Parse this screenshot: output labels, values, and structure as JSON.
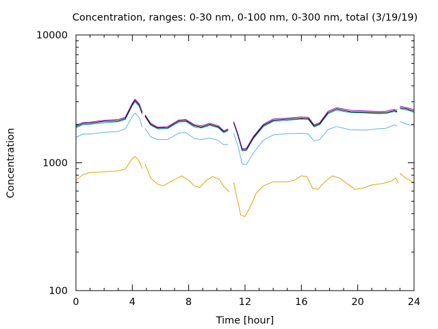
{
  "chart_data": {
    "type": "line",
    "title": "Concentration, ranges: 0-30 nm, 0-100 nm, 0-300 nm, total (3/19/19)",
    "xlabel": "Time [hour]",
    "ylabel": "Concentration",
    "xlim": [
      0,
      24
    ],
    "ylim": [
      100,
      10000
    ],
    "yscale": "log",
    "grid": false,
    "legend": "none",
    "x_ticks": [
      "0",
      "4",
      "8",
      "12",
      "16",
      "20",
      "24"
    ],
    "y_ticks": [
      "100",
      "1000",
      "10000"
    ],
    "series": [
      {
        "color": "#e69f00",
        "points": [
          [
            0,
            730
          ],
          [
            0.5,
            810
          ],
          [
            1,
            840
          ],
          [
            2,
            850
          ],
          [
            3,
            865
          ],
          [
            3.5,
            890
          ],
          [
            4.0,
            1080
          ],
          [
            4.2,
            1120
          ],
          [
            4.5,
            1030
          ],
          [
            4.7,
            900
          ],
          [
            4.8,
            null
          ],
          [
            4.9,
            980
          ],
          [
            5.3,
            760
          ],
          [
            5.8,
            680
          ],
          [
            6.2,
            660
          ],
          [
            6.8,
            720
          ],
          [
            7.5,
            790
          ],
          [
            8.0,
            730
          ],
          [
            8.4,
            660
          ],
          [
            8.8,
            640
          ],
          [
            9.2,
            720
          ],
          [
            9.7,
            780
          ],
          [
            10.2,
            740
          ],
          [
            10.5,
            650
          ],
          [
            10.9,
            590
          ],
          [
            11.0,
            null
          ],
          [
            11.2,
            700
          ],
          [
            11.4,
            550
          ],
          [
            11.7,
            390
          ],
          [
            12.0,
            380
          ],
          [
            12.4,
            460
          ],
          [
            12.8,
            580
          ],
          [
            13.3,
            660
          ],
          [
            14.0,
            710
          ],
          [
            15.0,
            710
          ],
          [
            15.5,
            730
          ],
          [
            16.0,
            790
          ],
          [
            16.4,
            780
          ],
          [
            16.8,
            630
          ],
          [
            17.2,
            620
          ],
          [
            17.6,
            700
          ],
          [
            18.2,
            790
          ],
          [
            18.7,
            760
          ],
          [
            19.3,
            680
          ],
          [
            19.8,
            620
          ],
          [
            20.3,
            630
          ],
          [
            21.0,
            670
          ],
          [
            21.8,
            690
          ],
          [
            22.4,
            720
          ],
          [
            22.7,
            760
          ],
          [
            22.9,
            690
          ],
          [
            23.0,
            null
          ],
          [
            23.0,
            830
          ],
          [
            23.4,
            760
          ],
          [
            24,
            700
          ]
        ]
      },
      {
        "color": "#56b4e9",
        "points": [
          [
            0,
            1580
          ],
          [
            0.5,
            1680
          ],
          [
            1,
            1680
          ],
          [
            2,
            1730
          ],
          [
            3,
            1760
          ],
          [
            3.5,
            1840
          ],
          [
            4.0,
            2300
          ],
          [
            4.2,
            2450
          ],
          [
            4.5,
            2250
          ],
          [
            4.7,
            1900
          ],
          [
            4.8,
            null
          ],
          [
            4.9,
            1860
          ],
          [
            5.3,
            1600
          ],
          [
            5.8,
            1520
          ],
          [
            6.5,
            1520
          ],
          [
            7.3,
            1710
          ],
          [
            7.8,
            1720
          ],
          [
            8.4,
            1550
          ],
          [
            8.9,
            1520
          ],
          [
            9.5,
            1560
          ],
          [
            10.1,
            1500
          ],
          [
            10.5,
            1380
          ],
          [
            10.8,
            1400
          ],
          [
            11.0,
            null
          ],
          [
            11.2,
            1700
          ],
          [
            11.5,
            1350
          ],
          [
            11.8,
            980
          ],
          [
            12.1,
            970
          ],
          [
            12.6,
            1200
          ],
          [
            13.3,
            1500
          ],
          [
            14.0,
            1650
          ],
          [
            15.0,
            1690
          ],
          [
            16.0,
            1700
          ],
          [
            16.5,
            1680
          ],
          [
            16.9,
            1480
          ],
          [
            17.3,
            1520
          ],
          [
            17.9,
            1820
          ],
          [
            18.5,
            1920
          ],
          [
            19.5,
            1810
          ],
          [
            20.5,
            1800
          ],
          [
            21.5,
            1850
          ],
          [
            22.0,
            1860
          ],
          [
            22.6,
            1980
          ],
          [
            22.8,
            1950
          ],
          [
            23.0,
            null
          ],
          [
            23.0,
            2100
          ],
          [
            23.5,
            2000
          ],
          [
            24,
            1950
          ]
        ]
      },
      {
        "color": "#009e73",
        "points": [
          [
            0,
            1880
          ],
          [
            0.5,
            1990
          ],
          [
            1,
            2000
          ],
          [
            2,
            2060
          ],
          [
            3,
            2090
          ],
          [
            3.5,
            2180
          ],
          [
            4.0,
            2800
          ],
          [
            4.2,
            3000
          ],
          [
            4.5,
            2750
          ],
          [
            4.7,
            2400
          ],
          [
            4.8,
            null
          ],
          [
            4.9,
            2300
          ],
          [
            5.3,
            1970
          ],
          [
            5.8,
            1840
          ],
          [
            6.5,
            1850
          ],
          [
            7.3,
            2080
          ],
          [
            7.8,
            2100
          ],
          [
            8.4,
            1910
          ],
          [
            8.9,
            1870
          ],
          [
            9.5,
            1960
          ],
          [
            10.1,
            1880
          ],
          [
            10.5,
            1720
          ],
          [
            10.8,
            1780
          ],
          [
            11.0,
            null
          ],
          [
            11.2,
            2040
          ],
          [
            11.5,
            1620
          ],
          [
            11.8,
            1240
          ],
          [
            12.1,
            1250
          ],
          [
            12.6,
            1550
          ],
          [
            13.3,
            1920
          ],
          [
            14.0,
            2110
          ],
          [
            15.0,
            2150
          ],
          [
            16.0,
            2190
          ],
          [
            16.5,
            2180
          ],
          [
            16.9,
            1910
          ],
          [
            17.3,
            1990
          ],
          [
            17.9,
            2420
          ],
          [
            18.5,
            2580
          ],
          [
            19.5,
            2470
          ],
          [
            20.5,
            2450
          ],
          [
            21.5,
            2420
          ],
          [
            22.0,
            2430
          ],
          [
            22.6,
            2520
          ],
          [
            22.8,
            2480
          ],
          [
            23.0,
            null
          ],
          [
            23.0,
            2650
          ],
          [
            23.5,
            2590
          ],
          [
            24,
            2480
          ]
        ]
      },
      {
        "color": "#000000",
        "points": [
          [
            0,
            1920
          ],
          [
            0.5,
            2030
          ],
          [
            1,
            2040
          ],
          [
            2,
            2110
          ],
          [
            3,
            2130
          ],
          [
            3.5,
            2220
          ],
          [
            4.0,
            2860
          ],
          [
            4.2,
            3070
          ],
          [
            4.5,
            2820
          ],
          [
            4.7,
            2450
          ],
          [
            4.8,
            null
          ],
          [
            4.9,
            2330
          ],
          [
            5.3,
            2000
          ],
          [
            5.8,
            1870
          ],
          [
            6.5,
            1880
          ],
          [
            7.3,
            2120
          ],
          [
            7.8,
            2140
          ],
          [
            8.4,
            1950
          ],
          [
            8.9,
            1900
          ],
          [
            9.5,
            2000
          ],
          [
            10.1,
            1910
          ],
          [
            10.5,
            1750
          ],
          [
            10.8,
            1810
          ],
          [
            11.0,
            null
          ],
          [
            11.2,
            2070
          ],
          [
            11.5,
            1650
          ],
          [
            11.8,
            1260
          ],
          [
            12.1,
            1270
          ],
          [
            12.6,
            1580
          ],
          [
            13.3,
            1960
          ],
          [
            14.0,
            2150
          ],
          [
            15.0,
            2190
          ],
          [
            16.0,
            2230
          ],
          [
            16.5,
            2220
          ],
          [
            16.9,
            1940
          ],
          [
            17.3,
            2020
          ],
          [
            17.9,
            2470
          ],
          [
            18.5,
            2640
          ],
          [
            19.5,
            2510
          ],
          [
            20.5,
            2490
          ],
          [
            21.5,
            2460
          ],
          [
            22.0,
            2470
          ],
          [
            22.6,
            2560
          ],
          [
            22.8,
            2520
          ],
          [
            23.0,
            null
          ],
          [
            23.0,
            2700
          ],
          [
            23.5,
            2640
          ],
          [
            24,
            2530
          ]
        ]
      },
      {
        "color": "#9400d3",
        "points": [
          [
            0,
            1960
          ],
          [
            0.5,
            2070
          ],
          [
            1,
            2080
          ],
          [
            2,
            2150
          ],
          [
            3,
            2180
          ],
          [
            3.5,
            2270
          ],
          [
            4.0,
            2920
          ],
          [
            4.2,
            3150
          ],
          [
            4.5,
            2880
          ],
          [
            4.7,
            2500
          ],
          [
            4.8,
            null
          ],
          [
            4.9,
            2380
          ],
          [
            5.3,
            2040
          ],
          [
            5.8,
            1900
          ],
          [
            6.5,
            1920
          ],
          [
            7.3,
            2160
          ],
          [
            7.8,
            2180
          ],
          [
            8.4,
            1990
          ],
          [
            8.9,
            1940
          ],
          [
            9.5,
            2040
          ],
          [
            10.1,
            1950
          ],
          [
            10.5,
            1780
          ],
          [
            10.8,
            1840
          ],
          [
            11.0,
            null
          ],
          [
            11.2,
            2100
          ],
          [
            11.5,
            1680
          ],
          [
            11.8,
            1290
          ],
          [
            12.1,
            1300
          ],
          [
            12.6,
            1610
          ],
          [
            13.3,
            2000
          ],
          [
            14.0,
            2200
          ],
          [
            15.0,
            2240
          ],
          [
            16.0,
            2280
          ],
          [
            16.5,
            2270
          ],
          [
            16.9,
            1980
          ],
          [
            17.3,
            2060
          ],
          [
            17.9,
            2530
          ],
          [
            18.5,
            2700
          ],
          [
            19.5,
            2570
          ],
          [
            20.5,
            2550
          ],
          [
            21.5,
            2520
          ],
          [
            22.0,
            2530
          ],
          [
            22.6,
            2620
          ],
          [
            22.8,
            2580
          ],
          [
            23.0,
            null
          ],
          [
            23.0,
            2770
          ],
          [
            23.5,
            2700
          ],
          [
            24,
            2600
          ]
        ]
      }
    ]
  }
}
